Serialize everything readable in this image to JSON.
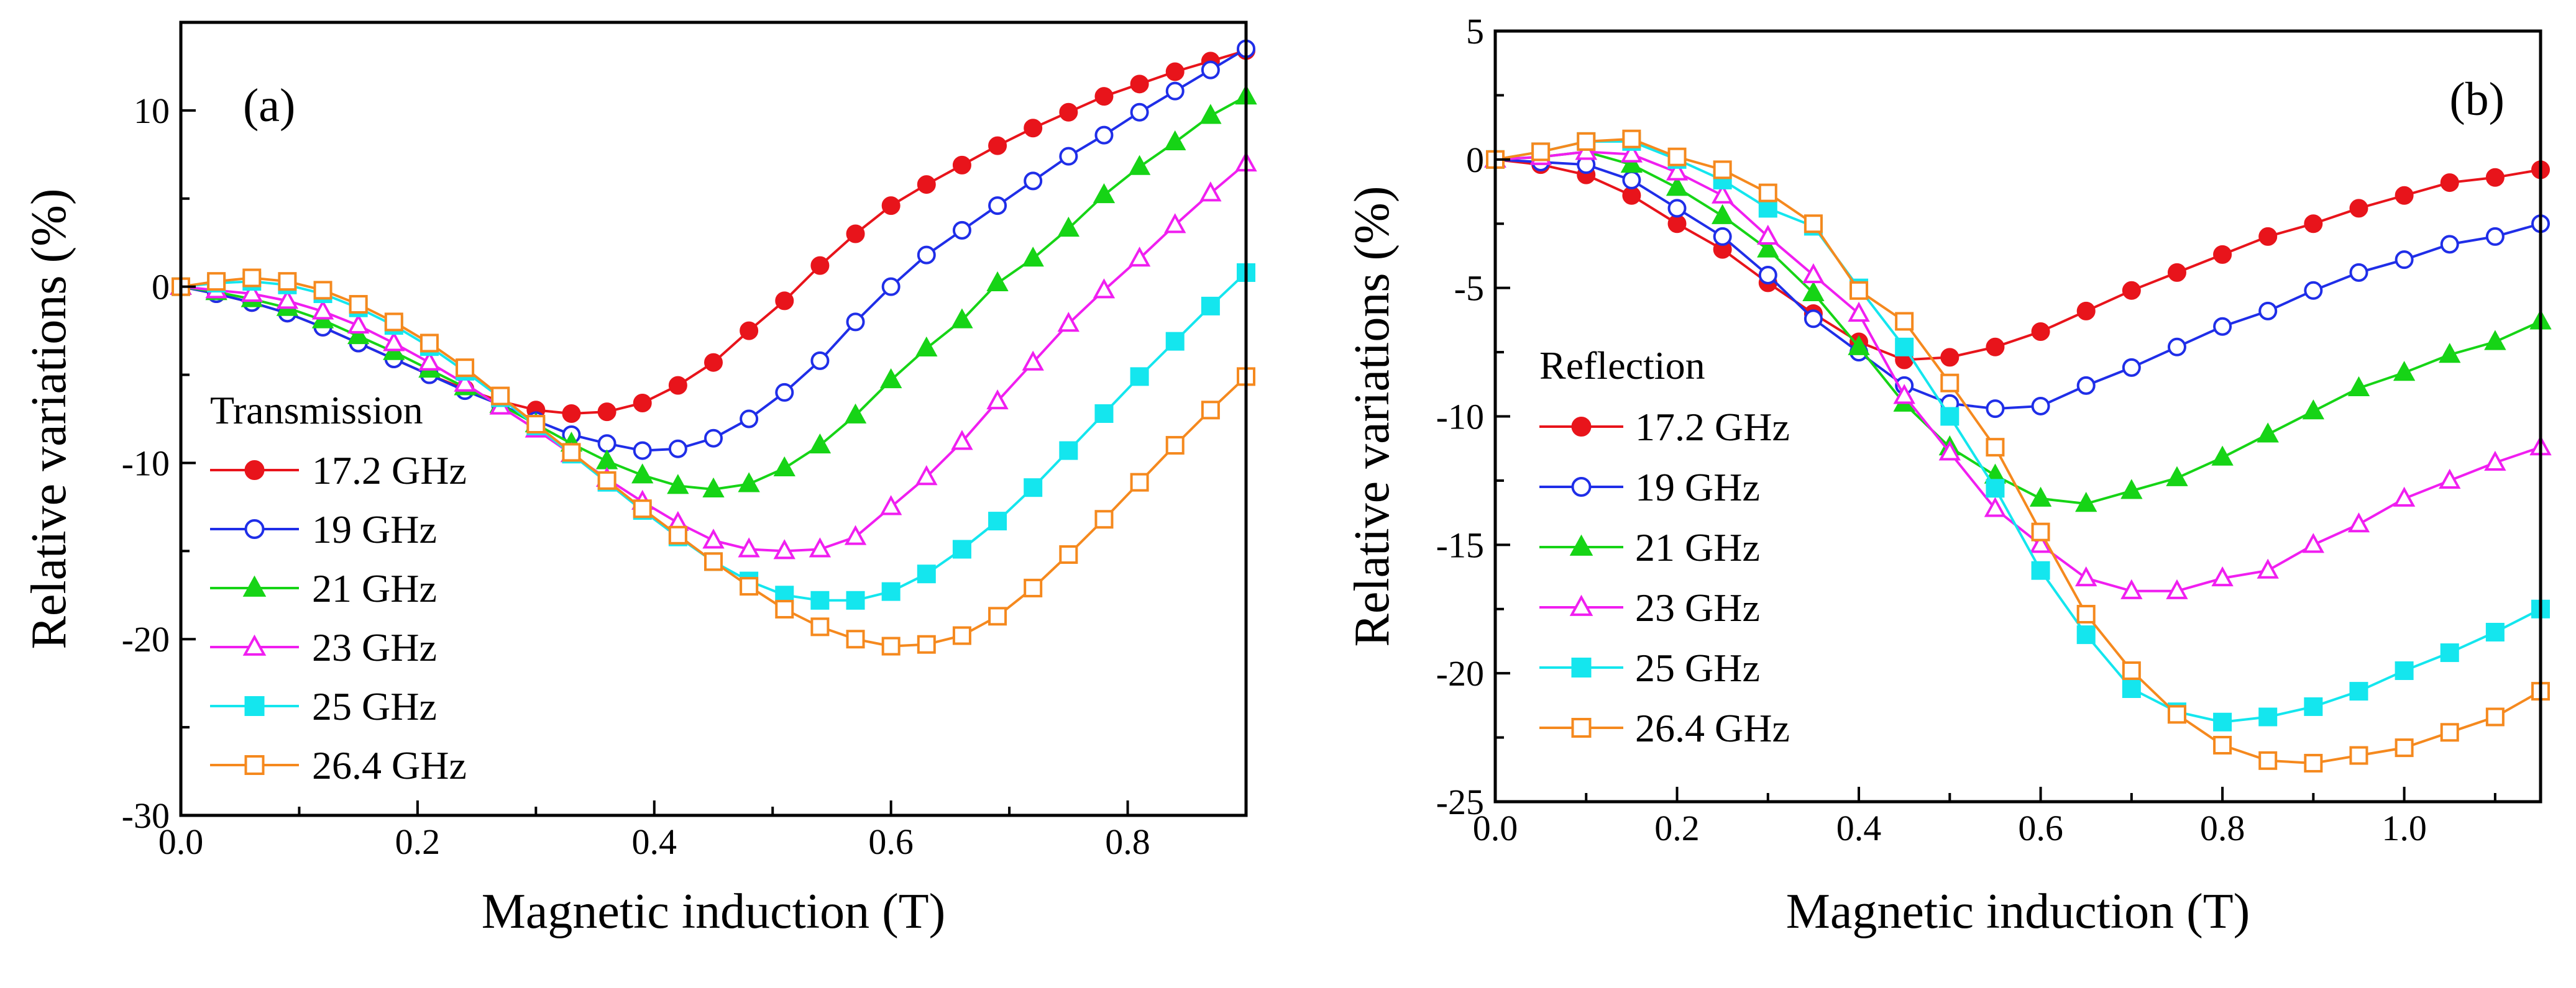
{
  "chart_data": [
    {
      "type": "line",
      "panel_label": "(a)",
      "xlabel": "Magnetic induction (T)",
      "ylabel": "Relative variations (%)",
      "xlim": [
        0,
        0.9
      ],
      "ylim": [
        -30,
        15
      ],
      "xticks": [
        "0.0",
        "0.2",
        "0.4",
        "0.6",
        "0.8"
      ],
      "xtick_values": [
        0,
        0.2,
        0.4,
        0.6,
        0.8
      ],
      "yticks": [
        "-30",
        "-20",
        "-10",
        "0",
        "10"
      ],
      "ytick_values": [
        -30,
        -20,
        -10,
        0,
        10
      ],
      "grid": false,
      "legend_title": "Transmission",
      "legend_position": "bottom-left",
      "x": [
        0,
        0.03,
        0.06,
        0.09,
        0.12,
        0.15,
        0.18,
        0.21,
        0.24,
        0.27,
        0.3,
        0.33,
        0.36,
        0.39,
        0.42,
        0.45,
        0.48,
        0.51,
        0.54,
        0.57,
        0.6,
        0.63,
        0.66,
        0.69,
        0.72,
        0.75,
        0.78,
        0.81,
        0.84,
        0.87,
        0.9
      ],
      "series": [
        {
          "name": "17.2 GHz",
          "color": "#e8141b",
          "marker": "circle-filled",
          "values": [
            0,
            -0.4,
            -0.9,
            -1.5,
            -2.3,
            -3.2,
            -4.1,
            -5,
            -5.8,
            -6.5,
            -7,
            -7.2,
            -7.1,
            -6.6,
            -5.6,
            -4.3,
            -2.5,
            -0.8,
            1.2,
            3,
            4.6,
            5.8,
            6.9,
            8,
            9,
            9.9,
            10.8,
            11.5,
            12.2,
            12.8,
            13.4
          ]
        },
        {
          "name": "19 GHz",
          "color": "#1f2ee8",
          "marker": "circle-open",
          "values": [
            0,
            -0.4,
            -0.9,
            -1.5,
            -2.3,
            -3.2,
            -4.1,
            -5,
            -5.9,
            -6.7,
            -7.6,
            -8.4,
            -8.9,
            -9.3,
            -9.2,
            -8.6,
            -7.5,
            -6,
            -4.2,
            -2,
            0,
            1.8,
            3.2,
            4.6,
            6,
            7.4,
            8.6,
            9.9,
            11.1,
            12.3,
            13.5
          ]
        },
        {
          "name": "21 GHz",
          "color": "#16d416",
          "marker": "triangle-filled",
          "values": [
            0,
            -0.3,
            -0.7,
            -1.2,
            -1.9,
            -2.8,
            -3.7,
            -4.7,
            -5.7,
            -6.7,
            -7.8,
            -8.9,
            -9.9,
            -10.7,
            -11.3,
            -11.5,
            -11.2,
            -10.3,
            -9,
            -7.3,
            -5.3,
            -3.5,
            -1.9,
            0.2,
            1.6,
            3.3,
            5.2,
            6.8,
            8.2,
            9.7,
            10.8
          ]
        },
        {
          "name": "23 GHz",
          "color": "#f01ef0",
          "marker": "triangle-open",
          "values": [
            0,
            -0.2,
            -0.4,
            -0.8,
            -1.4,
            -2.2,
            -3.2,
            -4.3,
            -5.5,
            -6.8,
            -8.1,
            -9.5,
            -10.9,
            -12.2,
            -13.4,
            -14.4,
            -14.9,
            -15,
            -14.9,
            -14.2,
            -12.5,
            -10.8,
            -8.8,
            -6.5,
            -4.3,
            -2.1,
            -0.2,
            1.6,
            3.5,
            5.3,
            7
          ]
        },
        {
          "name": "25 GHz",
          "color": "#14e6ee",
          "marker": "square-filled",
          "values": [
            0,
            0.2,
            0.3,
            0.1,
            -0.4,
            -1.2,
            -2.2,
            -3.4,
            -4.8,
            -6.3,
            -7.9,
            -9.5,
            -11.1,
            -12.7,
            -14.2,
            -15.6,
            -16.7,
            -17.5,
            -17.8,
            -17.8,
            -17.3,
            -16.3,
            -14.9,
            -13.3,
            -11.4,
            -9.3,
            -7.2,
            -5.1,
            -3.1,
            -1.1,
            0.8
          ]
        },
        {
          "name": "26.4 GHz",
          "color": "#f5891e",
          "marker": "square-open",
          "values": [
            0,
            0.3,
            0.5,
            0.3,
            -0.2,
            -1,
            -2,
            -3.2,
            -4.6,
            -6.2,
            -7.8,
            -9.4,
            -11,
            -12.6,
            -14.1,
            -15.6,
            -17,
            -18.3,
            -19.3,
            -20,
            -20.4,
            -20.3,
            -19.8,
            -18.7,
            -17.1,
            -15.2,
            -13.2,
            -11.1,
            -9,
            -7,
            -5.1
          ]
        }
      ]
    },
    {
      "type": "line",
      "panel_label": "(b)",
      "xlabel": "Magnetic induction (T)",
      "ylabel": "Relative variations (%)",
      "xlim": [
        0,
        1.15
      ],
      "ylim": [
        -25,
        5
      ],
      "xticks": [
        "0.0",
        "0.2",
        "0.4",
        "0.6",
        "0.8",
        "1.0"
      ],
      "xtick_values": [
        0,
        0.2,
        0.4,
        0.6,
        0.8,
        1.0
      ],
      "yticks": [
        "-25",
        "-20",
        "-15",
        "-10",
        "-5",
        "0",
        "5"
      ],
      "ytick_values": [
        -25,
        -20,
        -15,
        -10,
        -5,
        0,
        5
      ],
      "grid": false,
      "legend_title": "Reflection",
      "legend_position": "center-left",
      "x": [
        0,
        0.05,
        0.1,
        0.15,
        0.2,
        0.25,
        0.3,
        0.35,
        0.4,
        0.45,
        0.5,
        0.55,
        0.6,
        0.65,
        0.7,
        0.75,
        0.8,
        0.85,
        0.9,
        0.95,
        1.0,
        1.05,
        1.1,
        1.15
      ],
      "series": [
        {
          "name": "17.2 GHz",
          "color": "#e8141b",
          "marker": "circle-filled",
          "values": [
            0,
            -0.2,
            -0.6,
            -1.4,
            -2.5,
            -3.5,
            -4.8,
            -6,
            -7.1,
            -7.8,
            -7.7,
            -7.3,
            -6.7,
            -5.9,
            -5.1,
            -4.4,
            -3.7,
            -3,
            -2.5,
            -1.9,
            -1.4,
            -0.9,
            -0.7,
            -0.4
          ]
        },
        {
          "name": "19 GHz",
          "color": "#1f2ee8",
          "marker": "circle-open",
          "values": [
            0,
            -0.1,
            -0.2,
            -0.8,
            -1.9,
            -3,
            -4.5,
            -6.2,
            -7.5,
            -8.8,
            -9.5,
            -9.7,
            -9.6,
            -8.8,
            -8.1,
            -7.3,
            -6.5,
            -5.9,
            -5.1,
            -4.4,
            -3.9,
            -3.3,
            -3,
            -2.5
          ]
        },
        {
          "name": "21 GHz",
          "color": "#16d416",
          "marker": "triangle-filled",
          "values": [
            0,
            0.1,
            0.3,
            -0.2,
            -1.1,
            -2.2,
            -3.5,
            -5.2,
            -7.3,
            -9.5,
            -11.2,
            -12.3,
            -13.2,
            -13.4,
            -12.9,
            -12.4,
            -11.6,
            -10.7,
            -9.8,
            -8.9,
            -8.3,
            -7.6,
            -7.1,
            -6.3
          ]
        },
        {
          "name": "23 GHz",
          "color": "#f01ef0",
          "marker": "triangle-open",
          "values": [
            0,
            0.1,
            0.3,
            0.2,
            -0.5,
            -1.4,
            -3,
            -4.5,
            -6,
            -9.2,
            -11.4,
            -13.6,
            -15,
            -16.3,
            -16.8,
            -16.8,
            -16.3,
            -16,
            -15,
            -14.2,
            -13.2,
            -12.5,
            -11.8,
            -11.2
          ]
        },
        {
          "name": "25 GHz",
          "color": "#14e6ee",
          "marker": "square-filled",
          "values": [
            0,
            0.3,
            0.7,
            0.7,
            0,
            -0.8,
            -1.9,
            -2.6,
            -5,
            -7.3,
            -10,
            -12.8,
            -16,
            -18.5,
            -20.6,
            -21.5,
            -21.9,
            -21.7,
            -21.3,
            -20.7,
            -19.9,
            -19.2,
            -18.4,
            -17.5
          ]
        },
        {
          "name": "26.4 GHz",
          "color": "#f5891e",
          "marker": "square-open",
          "values": [
            0,
            0.3,
            0.7,
            0.8,
            0.1,
            -0.4,
            -1.3,
            -2.5,
            -5.1,
            -6.3,
            -8.7,
            -11.2,
            -14.5,
            -17.7,
            -19.9,
            -21.6,
            -22.8,
            -23.4,
            -23.5,
            -23.2,
            -22.9,
            -22.3,
            -21.7,
            -20.7
          ]
        }
      ]
    }
  ]
}
